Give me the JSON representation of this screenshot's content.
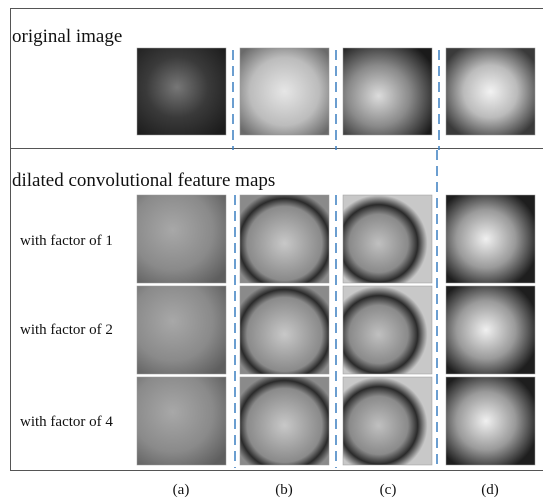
{
  "sections": [
    {
      "title": "original image"
    },
    {
      "title": "dilated convolutional feature maps",
      "rows": [
        "with factor of 1",
        "with factor of 2",
        "with factor of 4"
      ]
    }
  ],
  "columns": [
    "(a)",
    "(b)",
    "(c)",
    "(d)"
  ]
}
